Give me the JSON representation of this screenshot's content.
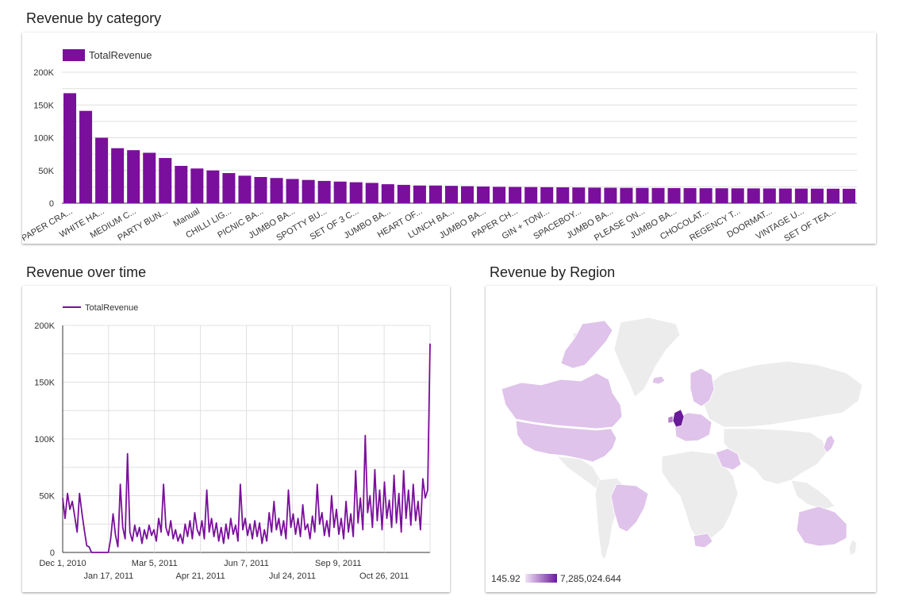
{
  "titles": {
    "category": "Revenue by category",
    "time": "Revenue over time",
    "region": "Revenue by Region"
  },
  "colors": {
    "accent": "#7a0f9c",
    "map_low": "#e3c7ee",
    "map_high": "#6a1b9a",
    "map_nodata": "#eeeeee"
  },
  "chart_data": [
    {
      "type": "bar",
      "title": "Revenue by category",
      "legend": [
        "TotalRevenue"
      ],
      "legend_position": "top-left",
      "grid": true,
      "ylim": [
        0,
        200000
      ],
      "yticks": [
        "0",
        "50K",
        "100K",
        "150K",
        "200K"
      ],
      "series": [
        {
          "name": "TotalRevenue",
          "values": [
            168000,
            141000,
            100000,
            84000,
            81000,
            77000,
            69000,
            57000,
            53000,
            50000,
            46000,
            42000,
            40000,
            38500,
            37000,
            35500,
            34000,
            33000,
            32000,
            31000,
            29000,
            28000,
            27000,
            27000,
            26500,
            26000,
            25500,
            25000,
            24800,
            24600,
            24400,
            24200,
            24000,
            23800,
            23600,
            23400,
            23300,
            23200,
            23100,
            23000,
            22900,
            22800,
            22700,
            22600,
            22500,
            22400,
            22300,
            22200,
            22100,
            22000
          ]
        }
      ],
      "visible_category_labels": [
        "PAPER CRA...",
        "WHITE HA...",
        "MEDIUM C...",
        "PARTY BUN...",
        "Manual",
        "CHILLI LIG...",
        "PICNIC BA...",
        "JUMBO BA...",
        "SPOTTY BU...",
        "SET OF 3 C...",
        "JUMBO BA...",
        "HEART OF...",
        "LUNCH BA...",
        "JUMBO BA...",
        "PAPER CH...",
        "GIN + TONI...",
        "SPACEBOY...",
        "JUMBO BA...",
        "PLEASE ON...",
        "JUMBO BA...",
        "CHOCOLAT...",
        "REGENCY T...",
        "DOORMAT...",
        "VINTAGE U...",
        "SET OF TEA..."
      ]
    },
    {
      "type": "line",
      "title": "Revenue over time",
      "legend": [
        "TotalRevenue"
      ],
      "legend_position": "top-left",
      "grid": true,
      "ylim": [
        0,
        200000
      ],
      "yticks": [
        "0",
        "50K",
        "100K",
        "150K",
        "200K"
      ],
      "xrange": [
        "Dec 1, 2010",
        "Dec 9, 2011"
      ],
      "xticks_upper": [
        "Dec 1, 2010",
        "Mar 5, 2011",
        "Jun 7, 2011",
        "Sep 9, 2011"
      ],
      "xticks_lower": [
        "Jan 17, 2011",
        "Apr 21, 2011",
        "Jul 24, 2011",
        "Oct 26, 2011"
      ],
      "series": [
        {
          "name": "TotalRevenue",
          "values": [
            48000,
            30000,
            52000,
            38000,
            45000,
            32000,
            18000,
            52000,
            35000,
            20000,
            6000,
            5000,
            0,
            0,
            0,
            0,
            0,
            0,
            0,
            0,
            12000,
            34000,
            15000,
            5000,
            60000,
            22000,
            12000,
            87000,
            18000,
            10000,
            24000,
            14000,
            22000,
            8000,
            20000,
            12000,
            24000,
            15000,
            20000,
            10000,
            30000,
            18000,
            60000,
            22000,
            15000,
            28000,
            12000,
            20000,
            10000,
            16000,
            8000,
            25000,
            14000,
            28000,
            12000,
            35000,
            20000,
            15000,
            28000,
            12000,
            55000,
            18000,
            30000,
            14000,
            26000,
            10000,
            22000,
            8000,
            25000,
            12000,
            30000,
            16000,
            24000,
            10000,
            60000,
            20000,
            30000,
            15000,
            25000,
            12000,
            28000,
            14000,
            26000,
            8000,
            20000,
            10000,
            35000,
            18000,
            45000,
            20000,
            30000,
            15000,
            28000,
            12000,
            55000,
            22000,
            34000,
            16000,
            30000,
            14000,
            42000,
            20000,
            25000,
            12000,
            32000,
            18000,
            60000,
            25000,
            35000,
            15000,
            28000,
            14000,
            50000,
            22000,
            38000,
            16000,
            30000,
            12000,
            45000,
            18000,
            34000,
            14000,
            72000,
            26000,
            48000,
            20000,
            103000,
            35000,
            50000,
            22000,
            73000,
            28000,
            55000,
            20000,
            62000,
            30000,
            46000,
            22000,
            68000,
            26000,
            52000,
            18000,
            72000,
            30000,
            55000,
            24000,
            60000,
            28000,
            45000,
            20000,
            65000,
            48000,
            55000,
            184000
          ]
        }
      ]
    },
    {
      "type": "map",
      "title": "Revenue by Region",
      "scale_min": "145.92",
      "scale_max": "7,285,024.644",
      "highlighted_regions": [
        "United Kingdom",
        "Canada",
        "United States",
        "Brazil",
        "Australia",
        "Japan",
        "Saudi Arabia",
        "United Arab Emirates",
        "Israel",
        "Lebanon",
        "South Africa",
        "Norway",
        "Sweden",
        "Finland",
        "Ireland",
        "France",
        "Germany",
        "Netherlands",
        "Belgium",
        "Spain",
        "Portugal",
        "Italy",
        "Switzerland",
        "Austria",
        "Poland",
        "Denmark",
        "Iceland",
        "Greece",
        "Cyprus",
        "Malta",
        "Lithuania",
        "Czech Republic",
        "Bahrain",
        "Singapore",
        "Greenland"
      ]
    }
  ]
}
